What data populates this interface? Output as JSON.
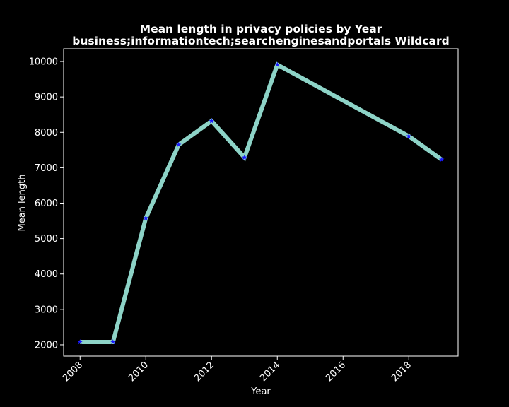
{
  "chart_data": {
    "type": "line",
    "title": "Mean length in privacy policies by Year",
    "subtitle": "business;informationtech;searchenginesandportals Wildcard",
    "xlabel": "Year",
    "ylabel": "Mean length",
    "xlim": [
      2007.5,
      2019.5
    ],
    "ylim": [
      1680,
      10360
    ],
    "x_ticks": [
      2008,
      2010,
      2012,
      2014,
      2016,
      2018
    ],
    "y_ticks": [
      2000,
      3000,
      4000,
      5000,
      6000,
      7000,
      8000,
      9000,
      10000
    ],
    "grid": false,
    "legend": "none",
    "series": [
      {
        "x": [
          2008,
          2009,
          2010,
          2011,
          2012,
          2013,
          2014,
          2018,
          2019
        ],
        "y": [
          2080,
          2080,
          5580,
          7650,
          8320,
          7290,
          9910,
          7890,
          7230
        ]
      }
    ],
    "colors": {
      "background": "#000000",
      "line": "#8dd3c7",
      "marker": "#1a1aff",
      "text": "#ffffff",
      "axes": "#ffffff"
    }
  }
}
